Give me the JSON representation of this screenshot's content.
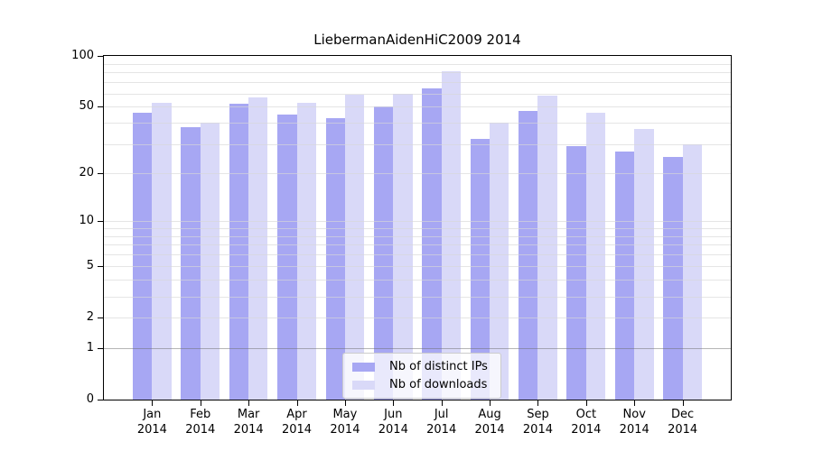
{
  "figure": {
    "title": "LiebermanAidenHiC2009 2014"
  },
  "chart_data": {
    "type": "bar",
    "title": "LiebermanAidenHiC2009 2014",
    "x_label_year": "2014",
    "categories": [
      "Jan",
      "Feb",
      "Mar",
      "Apr",
      "May",
      "Jun",
      "Jul",
      "Aug",
      "Sep",
      "Oct",
      "Nov",
      "Dec"
    ],
    "series": [
      {
        "name": "Nb of distinct IPs",
        "color": "#a7a7f3",
        "values": [
          46,
          38,
          52,
          45,
          43,
          50,
          64,
          32,
          47,
          29,
          27,
          25
        ]
      },
      {
        "name": "Nb of downloads",
        "color": "#d9d9f8",
        "values": [
          53,
          40,
          57,
          53,
          59,
          60,
          81,
          40,
          58,
          46,
          37,
          30
        ]
      }
    ],
    "y_axis": {
      "scale": "log1p",
      "tick_values": [
        0,
        1,
        2,
        5,
        10,
        20,
        50,
        100
      ],
      "minor_gridline_values": [
        3,
        4,
        6,
        7,
        8,
        9,
        30,
        40,
        60,
        70,
        80,
        90
      ],
      "ylim": [
        0,
        100
      ]
    },
    "grid": true,
    "legend": {
      "position": "lower-center",
      "entries": [
        "Nb of distinct IPs",
        "Nb of downloads"
      ]
    }
  },
  "colors": {
    "bar_distinct_ips": "#a7a7f3",
    "bar_downloads": "#d9d9f8",
    "axis": "#000000",
    "grid_minor": "#e9e9e9",
    "grid_baseline_1": "#b3b3b3",
    "legend_border": "#cccccc",
    "background": "#ffffff"
  }
}
